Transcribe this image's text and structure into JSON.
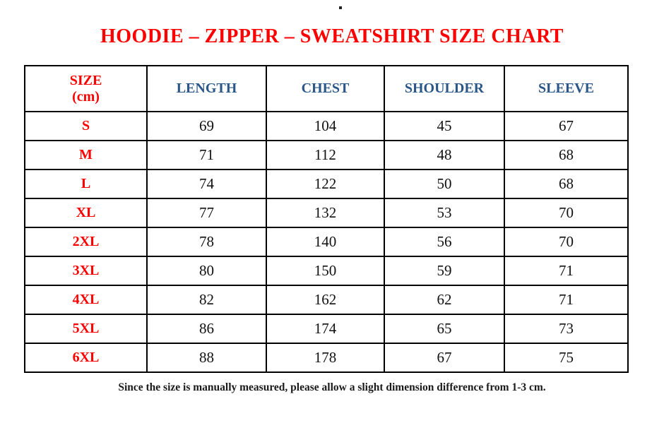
{
  "title": "HOODIE – ZIPPER – SWEATSHIRT SIZE CHART",
  "footer_note": "Since the size is manually measured, please allow a slight dimension difference from 1-3 cm.",
  "colors": {
    "title_red": "#ff0000",
    "size_column_red": "#ff0000",
    "header_blue": "#2a5788",
    "value_black": "#111111",
    "border_black": "#000000",
    "background": "#ffffff"
  },
  "chart_data": {
    "type": "table",
    "title": "HOODIE – ZIPPER – SWEATSHIRT SIZE CHART",
    "unit": "cm",
    "columns": [
      "SIZE\n(cm)",
      "LENGTH",
      "CHEST",
      "SHOULDER",
      "SLEEVE"
    ],
    "rows": [
      {
        "size": "S",
        "length": "69",
        "chest": "104",
        "shoulder": "45",
        "sleeve": "67"
      },
      {
        "size": "M",
        "length": "71",
        "chest": "112",
        "shoulder": "48",
        "sleeve": "68"
      },
      {
        "size": "L",
        "length": "74",
        "chest": "122",
        "shoulder": "50",
        "sleeve": "68"
      },
      {
        "size": "XL",
        "length": "77",
        "chest": "132",
        "shoulder": "53",
        "sleeve": "70"
      },
      {
        "size": "2XL",
        "length": "78",
        "chest": "140",
        "shoulder": "56",
        "sleeve": "70"
      },
      {
        "size": "3XL",
        "length": "80",
        "chest": "150",
        "shoulder": "59",
        "sleeve": "71"
      },
      {
        "size": "4XL",
        "length": "82",
        "chest": "162",
        "shoulder": "62",
        "sleeve": "71"
      },
      {
        "size": "5XL",
        "length": "86",
        "chest": "174",
        "shoulder": "65",
        "sleeve": "73"
      },
      {
        "size": "6XL",
        "length": "88",
        "chest": "178",
        "shoulder": "67",
        "sleeve": "75"
      }
    ],
    "notes": "Since the size is manually measured, please allow a slight dimension difference from 1-3 cm."
  }
}
